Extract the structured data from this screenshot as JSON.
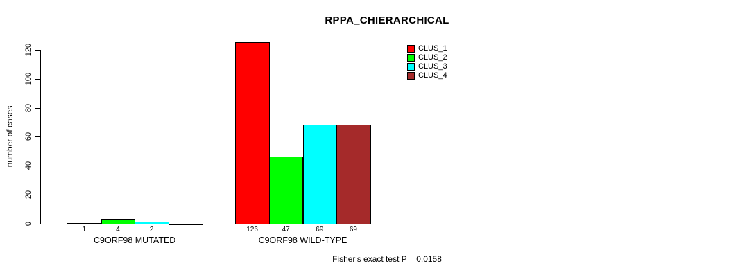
{
  "title": "RPPA_CHIERARCHICAL",
  "ylabel": "number of cases",
  "footer": "Fisher's exact test P = 0.0158",
  "chart_data": {
    "type": "bar",
    "title": "RPPA_CHIERARCHICAL",
    "xlabel": "",
    "ylabel": "number of cases",
    "ylim": [
      0,
      126
    ],
    "yticks": [
      0,
      20,
      40,
      60,
      80,
      100,
      120
    ],
    "grid": false,
    "legend_position": "top-right",
    "categories": [
      "C9ORF98 MUTATED",
      "C9ORF98 WILD-TYPE"
    ],
    "series": [
      {
        "name": "CLUS_1",
        "color": "#ff0000",
        "values": [
          1,
          126
        ]
      },
      {
        "name": "CLUS_2",
        "color": "#00ff00",
        "values": [
          4,
          47
        ]
      },
      {
        "name": "CLUS_3",
        "color": "#00ffff",
        "values": [
          2,
          69
        ]
      },
      {
        "name": "CLUS_4",
        "color": "#a52a2a",
        "values": [
          0,
          69
        ]
      }
    ],
    "groups": [
      {
        "label": "C9ORF98 MUTATED",
        "values": [
          1,
          4,
          2,
          0
        ],
        "bar_labels": [
          "1",
          "4",
          "2",
          ""
        ]
      },
      {
        "label": "C9ORF98 WILD-TYPE",
        "values": [
          126,
          47,
          69,
          69
        ],
        "bar_labels": [
          "126",
          "47",
          "69",
          "69"
        ]
      }
    ],
    "legend": [
      {
        "label": "CLUS_1",
        "color": "#ff0000"
      },
      {
        "label": "CLUS_2",
        "color": "#00ff00"
      },
      {
        "label": "CLUS_3",
        "color": "#00ffff"
      },
      {
        "label": "CLUS_4",
        "color": "#a52a2a"
      }
    ],
    "annotation": "Fisher's exact test P = 0.0158"
  }
}
